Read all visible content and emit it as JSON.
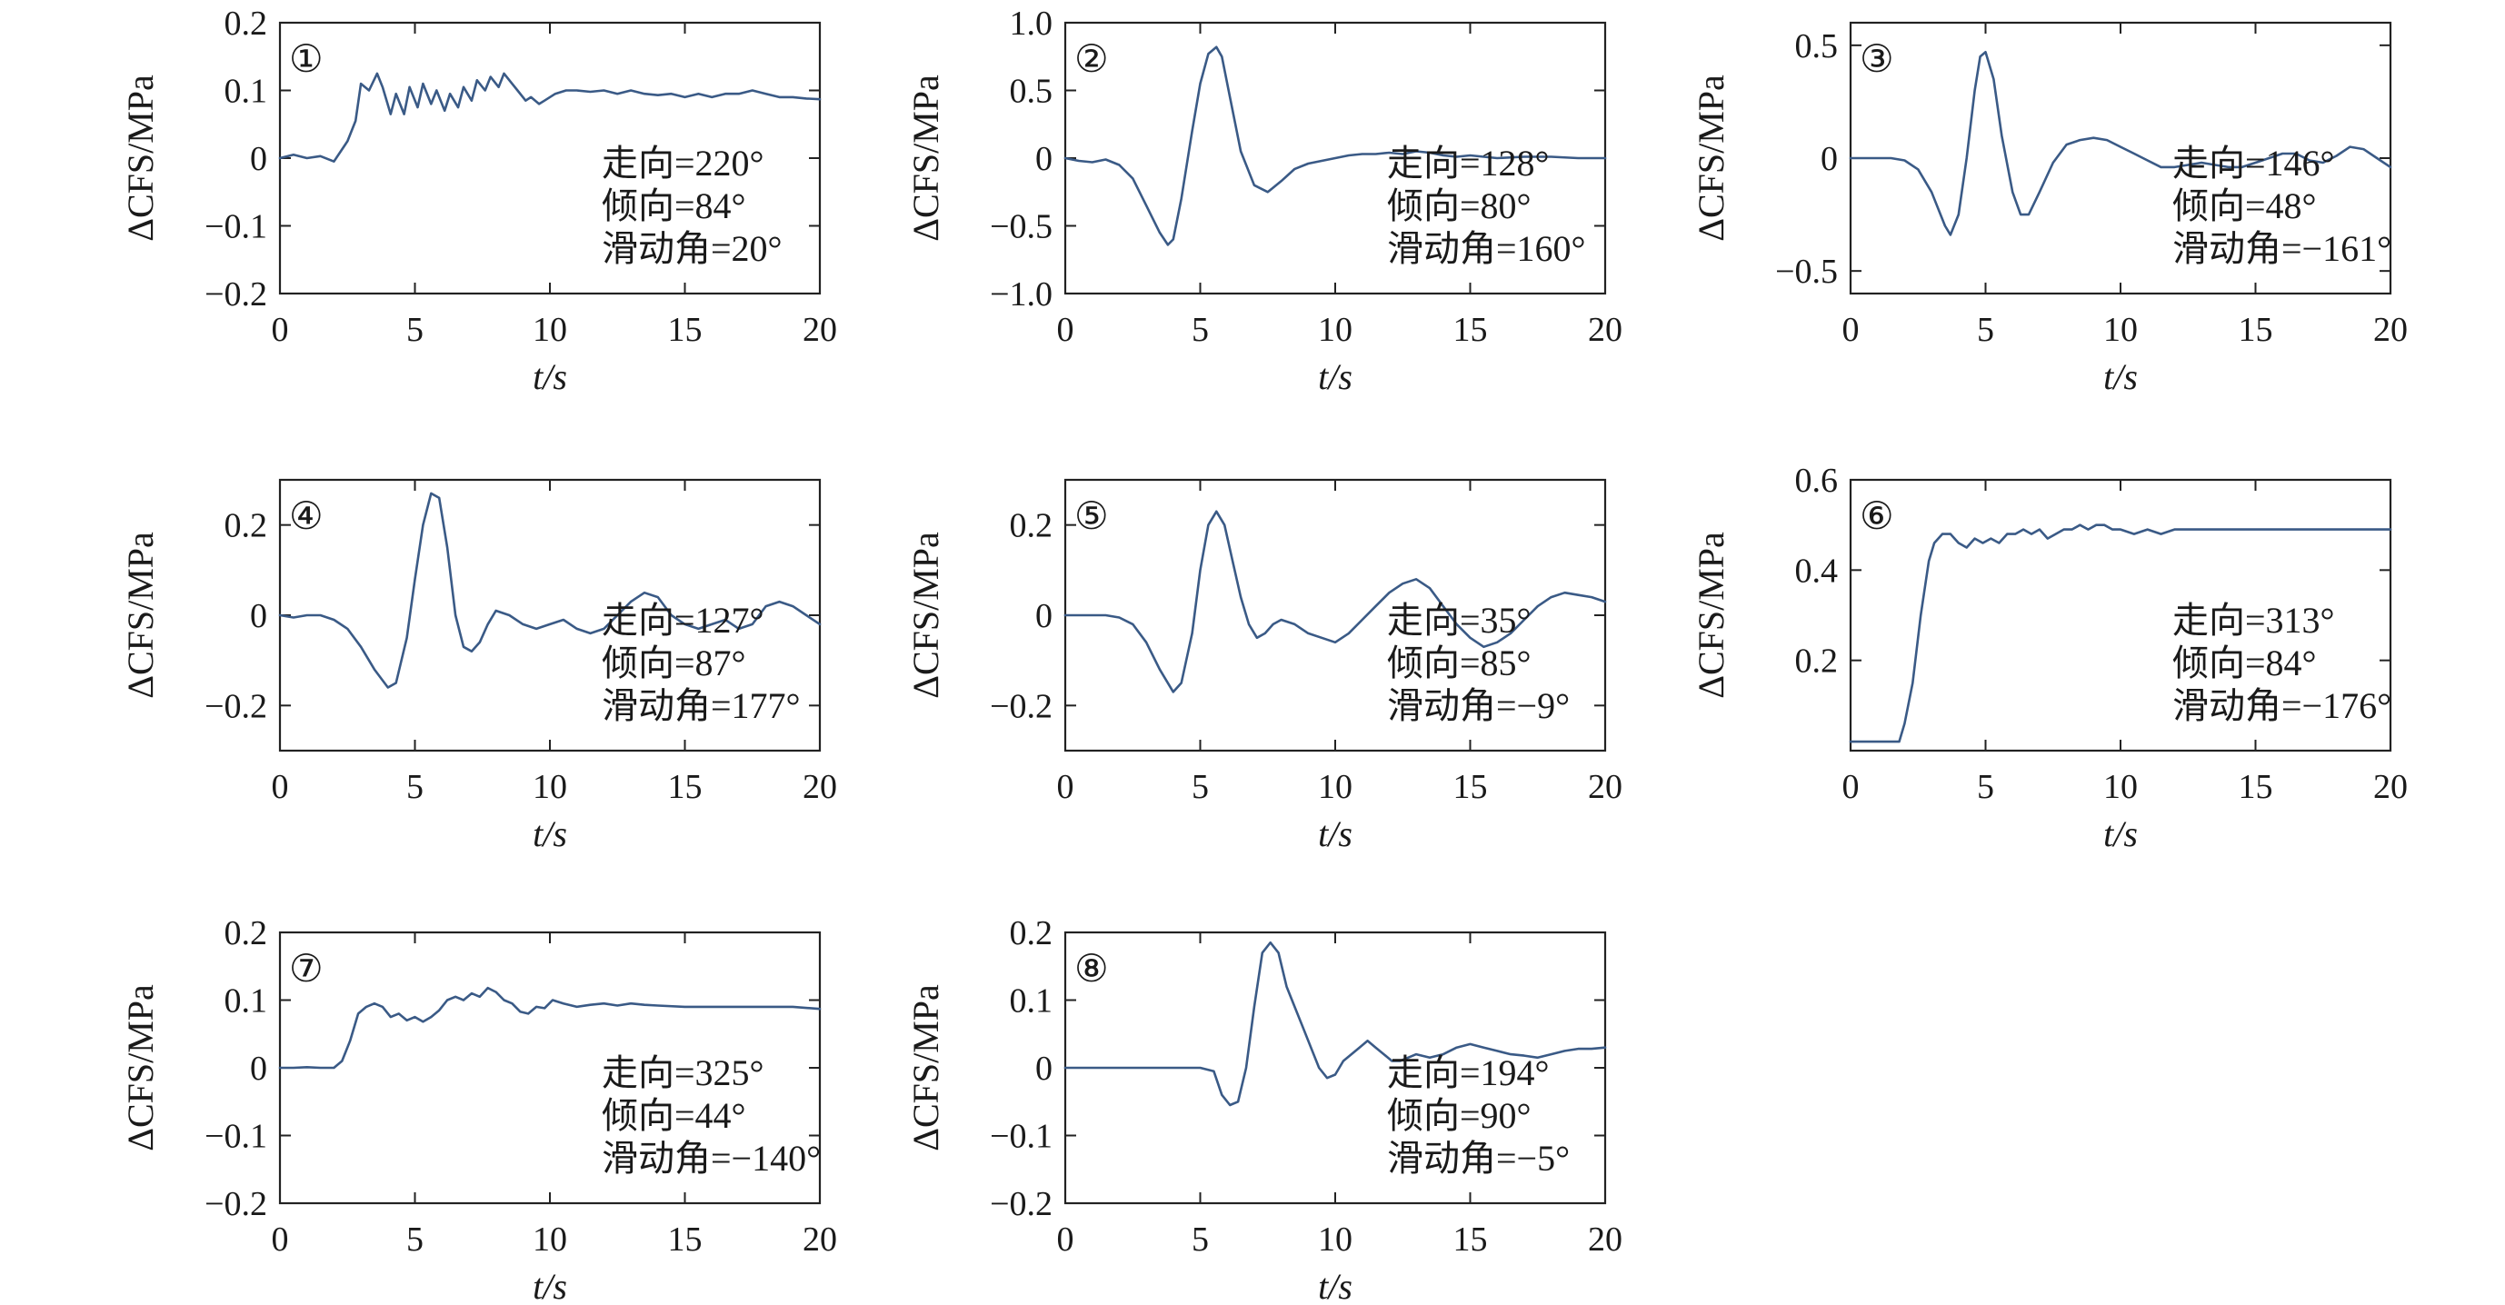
{
  "figure": {
    "line_color": "#3a5a86"
  },
  "chart_data": [
    {
      "type": "line",
      "panel_label": "①",
      "xlabel": "t/s",
      "ylabel": "ΔCFS/MPa",
      "xlim": [
        0,
        20
      ],
      "ylim": [
        -0.2,
        0.2
      ],
      "xticks": [
        0,
        5,
        10,
        15,
        20
      ],
      "yticks": [
        -0.2,
        -0.1,
        0,
        0.1,
        0.2
      ],
      "ytick_labels": [
        "−0.2",
        "−0.1",
        "0",
        "0.1",
        "0.2"
      ],
      "annotations": [
        "走向=220°",
        "倾向=84°",
        "滑动角=20°"
      ],
      "series": [
        {
          "x": [
            0,
            0.5,
            1,
            1.5,
            2,
            2.5,
            2.8,
            3,
            3.3,
            3.6,
            3.8,
            4.1,
            4.3,
            4.6,
            4.8,
            5.1,
            5.3,
            5.6,
            5.8,
            6.1,
            6.3,
            6.6,
            6.8,
            7.1,
            7.3,
            7.6,
            7.8,
            8.1,
            8.3,
            8.6,
            8.8,
            9.1,
            9.3,
            9.6,
            9.8,
            10.2,
            10.6,
            11,
            11.5,
            12,
            12.5,
            13,
            13.5,
            14,
            14.5,
            15,
            15.5,
            16,
            16.5,
            17,
            17.5,
            18,
            18.5,
            19,
            19.5,
            20
          ],
          "y": [
            0,
            0.005,
            0,
            0.003,
            -0.005,
            0.025,
            0.055,
            0.11,
            0.1,
            0.125,
            0.105,
            0.065,
            0.095,
            0.065,
            0.105,
            0.075,
            0.11,
            0.08,
            0.1,
            0.07,
            0.095,
            0.075,
            0.105,
            0.085,
            0.115,
            0.1,
            0.12,
            0.105,
            0.125,
            0.11,
            0.1,
            0.085,
            0.09,
            0.08,
            0.085,
            0.095,
            0.1,
            0.1,
            0.098,
            0.1,
            0.095,
            0.1,
            0.095,
            0.093,
            0.095,
            0.09,
            0.095,
            0.09,
            0.095,
            0.095,
            0.1,
            0.095,
            0.09,
            0.09,
            0.088,
            0.087
          ]
        }
      ]
    },
    {
      "type": "line",
      "panel_label": "②",
      "xlabel": "t/s",
      "ylabel": "ΔCFS/MPa",
      "xlim": [
        0,
        20
      ],
      "ylim": [
        -1.0,
        1.0
      ],
      "xticks": [
        0,
        5,
        10,
        15,
        20
      ],
      "yticks": [
        -1.0,
        -0.5,
        0,
        0.5,
        1.0
      ],
      "ytick_labels": [
        "−1.0",
        "−0.5",
        "0",
        "0.5",
        "1.0"
      ],
      "annotations": [
        "走向=128°",
        "倾向=80°",
        "滑动角=160°"
      ],
      "series": [
        {
          "x": [
            0,
            0.5,
            1,
            1.5,
            2,
            2.5,
            3,
            3.5,
            3.8,
            4,
            4.3,
            4.7,
            5,
            5.3,
            5.6,
            5.8,
            6.1,
            6.5,
            7,
            7.5,
            8,
            8.5,
            9,
            9.5,
            10,
            10.5,
            11,
            11.5,
            12,
            12.5,
            13,
            13.5,
            14,
            14.5,
            15,
            15.5,
            16,
            17,
            18,
            19,
            20
          ],
          "y": [
            0,
            -0.02,
            -0.03,
            -0.01,
            -0.05,
            -0.15,
            -0.35,
            -0.55,
            -0.64,
            -0.6,
            -0.3,
            0.2,
            0.55,
            0.77,
            0.82,
            0.75,
            0.45,
            0.05,
            -0.2,
            -0.25,
            -0.17,
            -0.08,
            -0.04,
            -0.02,
            0,
            0.02,
            0.03,
            0.03,
            0.04,
            0.03,
            0.05,
            0.04,
            0.02,
            0.01,
            0.02,
            0.01,
            0,
            0.01,
            0.01,
            0,
            0
          ]
        }
      ]
    },
    {
      "type": "line",
      "panel_label": "③",
      "xlabel": "t/s",
      "ylabel": "ΔCFS/MPa",
      "xlim": [
        0,
        20
      ],
      "ylim": [
        -0.6,
        0.6
      ],
      "xticks": [
        0,
        5,
        10,
        15,
        20
      ],
      "yticks": [
        -0.5,
        0,
        0.5
      ],
      "ytick_labels": [
        "−0.5",
        "0",
        "0.5"
      ],
      "annotations": [
        "走向=146°",
        "倾向=48°",
        "滑动角=−161°"
      ],
      "series": [
        {
          "x": [
            0,
            0.5,
            1,
            1.5,
            2,
            2.5,
            3,
            3.5,
            3.7,
            4,
            4.3,
            4.6,
            4.8,
            5,
            5.3,
            5.6,
            6,
            6.3,
            6.6,
            7,
            7.5,
            8,
            8.5,
            9,
            9.5,
            10,
            10.5,
            11,
            11.5,
            12,
            12.5,
            13,
            13.5,
            14,
            14.5,
            15,
            15.5,
            16,
            16.5,
            17,
            17.5,
            18,
            18.5,
            19,
            19.5,
            20
          ],
          "y": [
            0,
            0,
            0,
            0,
            -0.01,
            -0.05,
            -0.15,
            -0.3,
            -0.34,
            -0.25,
            0,
            0.3,
            0.45,
            0.47,
            0.35,
            0.1,
            -0.15,
            -0.25,
            -0.25,
            -0.15,
            -0.02,
            0.06,
            0.08,
            0.09,
            0.08,
            0.05,
            0.02,
            -0.01,
            -0.04,
            -0.04,
            -0.03,
            -0.02,
            -0.03,
            -0.04,
            -0.04,
            -0.02,
            0,
            0.02,
            0.02,
            -0.01,
            -0.02,
            0.01,
            0.05,
            0.04,
            0,
            -0.04
          ]
        }
      ]
    },
    {
      "type": "line",
      "panel_label": "④",
      "xlabel": "t/s",
      "ylabel": "ΔCFS/MPa",
      "xlim": [
        0,
        20
      ],
      "ylim": [
        -0.3,
        0.3
      ],
      "xticks": [
        0,
        5,
        10,
        15,
        20
      ],
      "yticks": [
        -0.2,
        0,
        0.2
      ],
      "ytick_labels": [
        "−0.2",
        "0",
        "0.2"
      ],
      "annotations": [
        "走向=127°",
        "倾向=87°",
        "滑动角=177°"
      ],
      "series": [
        {
          "x": [
            0,
            0.5,
            1,
            1.5,
            2,
            2.5,
            3,
            3.5,
            4,
            4.3,
            4.7,
            5,
            5.3,
            5.6,
            5.9,
            6.2,
            6.5,
            6.8,
            7.1,
            7.4,
            7.7,
            8,
            8.5,
            9,
            9.5,
            10,
            10.5,
            11,
            11.5,
            12,
            12.5,
            13,
            13.5,
            14,
            14.5,
            15,
            15.5,
            16,
            16.5,
            17,
            17.5,
            18,
            18.5,
            19,
            19.5,
            20
          ],
          "y": [
            0,
            -0.005,
            0,
            0,
            -0.01,
            -0.03,
            -0.07,
            -0.12,
            -0.16,
            -0.15,
            -0.05,
            0.08,
            0.2,
            0.27,
            0.26,
            0.15,
            0,
            -0.07,
            -0.08,
            -0.06,
            -0.02,
            0.01,
            0,
            -0.02,
            -0.03,
            -0.02,
            -0.01,
            -0.03,
            -0.04,
            -0.03,
            0,
            0.03,
            0.05,
            0.04,
            0,
            -0.02,
            -0.03,
            -0.02,
            -0.01,
            -0.03,
            -0.02,
            0.02,
            0.03,
            0.02,
            0,
            -0.02
          ]
        }
      ]
    },
    {
      "type": "line",
      "panel_label": "⑤",
      "xlabel": "t/s",
      "ylabel": "ΔCFS/MPa",
      "xlim": [
        0,
        20
      ],
      "ylim": [
        -0.3,
        0.3
      ],
      "xticks": [
        0,
        5,
        10,
        15,
        20
      ],
      "yticks": [
        -0.2,
        0,
        0.2
      ],
      "ytick_labels": [
        "−0.2",
        "0",
        "0.2"
      ],
      "annotations": [
        "走向=35°",
        "倾向=85°",
        "滑动角=−9°"
      ],
      "series": [
        {
          "x": [
            0,
            0.5,
            1,
            1.5,
            2,
            2.5,
            3,
            3.5,
            4,
            4.3,
            4.7,
            5,
            5.3,
            5.6,
            5.9,
            6.2,
            6.5,
            6.8,
            7.1,
            7.4,
            7.7,
            8,
            8.5,
            9,
            9.5,
            10,
            10.5,
            11,
            11.5,
            12,
            12.5,
            13,
            13.5,
            14,
            14.5,
            15,
            15.5,
            16,
            16.5,
            17,
            17.5,
            18,
            18.5,
            19,
            19.5,
            20
          ],
          "y": [
            0,
            0,
            0,
            0,
            -0.005,
            -0.02,
            -0.06,
            -0.12,
            -0.17,
            -0.15,
            -0.04,
            0.1,
            0.2,
            0.23,
            0.2,
            0.12,
            0.04,
            -0.02,
            -0.05,
            -0.04,
            -0.02,
            -0.01,
            -0.02,
            -0.04,
            -0.05,
            -0.06,
            -0.04,
            -0.01,
            0.02,
            0.05,
            0.07,
            0.08,
            0.06,
            0.02,
            -0.02,
            -0.05,
            -0.07,
            -0.06,
            -0.04,
            -0.01,
            0.02,
            0.04,
            0.05,
            0.045,
            0.04,
            0.03
          ]
        }
      ]
    },
    {
      "type": "line",
      "panel_label": "⑥",
      "xlabel": "t/s",
      "ylabel": "ΔCFS/MPa",
      "xlim": [
        0,
        20
      ],
      "ylim": [
        0,
        0.6
      ],
      "xticks": [
        0,
        5,
        10,
        15,
        20
      ],
      "yticks": [
        0.2,
        0.4,
        0.6
      ],
      "ytick_labels": [
        "0.2",
        "0.4",
        "0.6"
      ],
      "annotations": [
        "走向=313°",
        "倾向=84°",
        "滑动角=−176°"
      ],
      "series": [
        {
          "x": [
            0,
            0.5,
            1,
            1.5,
            1.8,
            2,
            2.3,
            2.6,
            2.9,
            3.1,
            3.4,
            3.7,
            4,
            4.3,
            4.6,
            4.9,
            5.2,
            5.5,
            5.8,
            6.1,
            6.4,
            6.7,
            7,
            7.3,
            7.6,
            7.9,
            8.2,
            8.5,
            8.8,
            9.1,
            9.4,
            9.7,
            10,
            10.5,
            11,
            11.5,
            12,
            13,
            14,
            15,
            16,
            17,
            18,
            19,
            20
          ],
          "y": [
            0.02,
            0.02,
            0.02,
            0.02,
            0.02,
            0.06,
            0.15,
            0.3,
            0.42,
            0.46,
            0.48,
            0.48,
            0.46,
            0.45,
            0.47,
            0.46,
            0.47,
            0.46,
            0.48,
            0.48,
            0.49,
            0.48,
            0.49,
            0.47,
            0.48,
            0.49,
            0.49,
            0.5,
            0.49,
            0.5,
            0.5,
            0.49,
            0.49,
            0.48,
            0.49,
            0.48,
            0.49,
            0.49,
            0.49,
            0.49,
            0.49,
            0.49,
            0.49,
            0.49,
            0.49
          ]
        }
      ]
    },
    {
      "type": "line",
      "panel_label": "⑦",
      "xlabel": "t/s",
      "ylabel": "ΔCFS/MPa",
      "xlim": [
        0,
        20
      ],
      "ylim": [
        -0.2,
        0.2
      ],
      "xticks": [
        0,
        5,
        10,
        15,
        20
      ],
      "yticks": [
        -0.2,
        -0.1,
        0,
        0.1,
        0.2
      ],
      "ytick_labels": [
        "−0.2",
        "−0.1",
        "0",
        "0.1",
        "0.2"
      ],
      "annotations": [
        "走向=325°",
        "倾向=44°",
        "滑动角=−140°"
      ],
      "series": [
        {
          "x": [
            0,
            0.5,
            1,
            1.5,
            2,
            2.3,
            2.6,
            2.9,
            3.2,
            3.5,
            3.8,
            4.1,
            4.4,
            4.7,
            5,
            5.3,
            5.6,
            5.9,
            6.2,
            6.5,
            6.8,
            7.1,
            7.4,
            7.7,
            8,
            8.3,
            8.6,
            8.9,
            9.2,
            9.5,
            9.8,
            10.1,
            10.5,
            11,
            11.5,
            12,
            12.5,
            13,
            13.5,
            14,
            15,
            16,
            17,
            18,
            19,
            20
          ],
          "y": [
            0,
            0,
            0.001,
            0,
            0,
            0.01,
            0.04,
            0.08,
            0.09,
            0.095,
            0.09,
            0.075,
            0.08,
            0.07,
            0.075,
            0.068,
            0.075,
            0.085,
            0.1,
            0.105,
            0.1,
            0.11,
            0.105,
            0.118,
            0.112,
            0.1,
            0.095,
            0.083,
            0.08,
            0.09,
            0.088,
            0.1,
            0.095,
            0.09,
            0.093,
            0.095,
            0.092,
            0.095,
            0.093,
            0.092,
            0.09,
            0.09,
            0.09,
            0.09,
            0.09,
            0.087
          ]
        }
      ]
    },
    {
      "type": "line",
      "panel_label": "⑧",
      "xlabel": "t/s",
      "ylabel": "ΔCFS/MPa",
      "xlim": [
        0,
        20
      ],
      "ylim": [
        -0.2,
        0.2
      ],
      "xticks": [
        0,
        5,
        10,
        15,
        20
      ],
      "yticks": [
        -0.2,
        -0.1,
        0,
        0.1,
        0.2
      ],
      "ytick_labels": [
        "−0.2",
        "−0.1",
        "0",
        "0.1",
        "0.2"
      ],
      "annotations": [
        "走向=194°",
        "倾向=90°",
        "滑动角=−5°"
      ],
      "series": [
        {
          "x": [
            0,
            1,
            2,
            3,
            4,
            5,
            5.5,
            5.8,
            6.1,
            6.4,
            6.7,
            7,
            7.3,
            7.6,
            7.9,
            8.2,
            8.5,
            8.8,
            9.1,
            9.4,
            9.7,
            10,
            10.3,
            10.6,
            10.9,
            11.2,
            11.5,
            11.8,
            12.1,
            12.4,
            12.7,
            13,
            13.5,
            14,
            14.5,
            15,
            15.5,
            16,
            16.5,
            17,
            17.5,
            18,
            18.5,
            19,
            19.5,
            20
          ],
          "y": [
            0,
            0,
            0,
            0,
            0,
            0,
            -0.005,
            -0.04,
            -0.055,
            -0.05,
            0,
            0.09,
            0.17,
            0.185,
            0.17,
            0.12,
            0.09,
            0.06,
            0.03,
            0,
            -0.015,
            -0.01,
            0.01,
            0.02,
            0.03,
            0.04,
            0.03,
            0.02,
            0.01,
            0.01,
            0.015,
            0.02,
            0.015,
            0.02,
            0.03,
            0.035,
            0.03,
            0.025,
            0.02,
            0.018,
            0.015,
            0.02,
            0.025,
            0.028,
            0.028,
            0.03
          ]
        }
      ]
    }
  ]
}
